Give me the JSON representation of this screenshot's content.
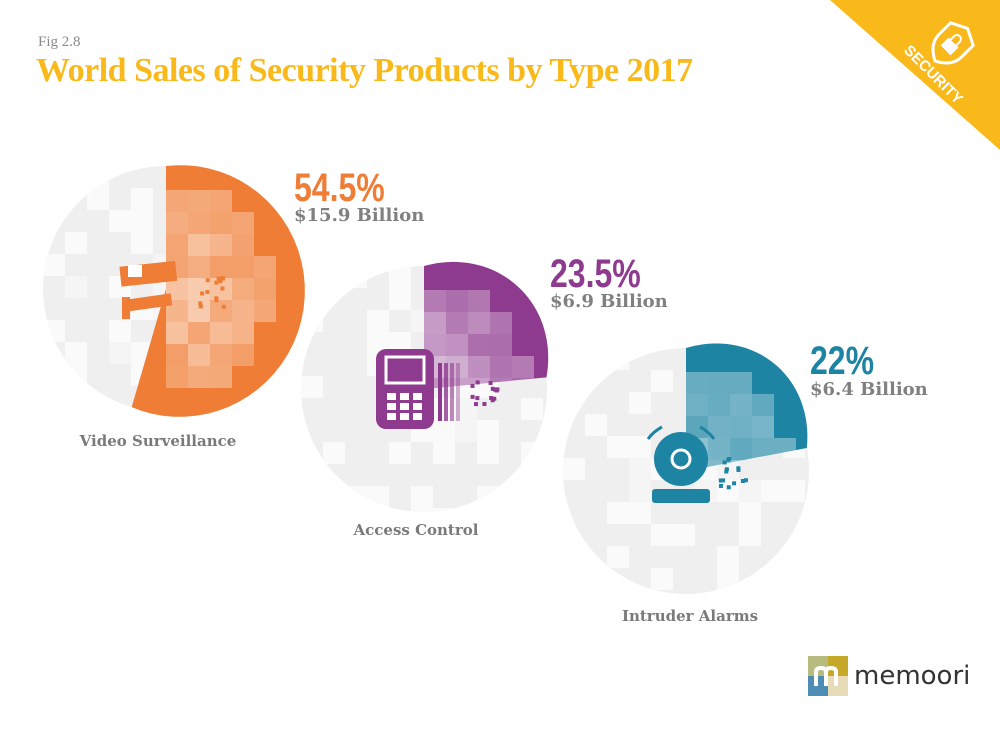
{
  "header": {
    "fig_label": "Fig 2.8",
    "badge_label": "SECURITY",
    "badge_icon": "shield-lock-icon"
  },
  "chart_data": {
    "type": "pie",
    "title": "World Sales of Security Products by Type 2017",
    "series": [
      {
        "category": "Video Surveillance",
        "percent": 54.5,
        "percent_label": "54.5%",
        "value_label": "$15.9 Billion",
        "value_billion_usd": 15.9,
        "color": "#ef7d35",
        "icon": "cctv-camera-icon"
      },
      {
        "category": "Access Control",
        "percent": 23.5,
        "percent_label": "23.5%",
        "value_label": "$6.9 Billion",
        "value_billion_usd": 6.9,
        "color": "#8e3a8e",
        "icon": "keypad-icon"
      },
      {
        "category": "Intruder Alarms",
        "percent": 22,
        "percent_label": "22%",
        "value_label": "$6.4 Billion",
        "value_billion_usd": 6.4,
        "color": "#1e84a3",
        "icon": "alarm-bell-icon"
      }
    ]
  },
  "brand": {
    "logo_text": "memoori",
    "accent": "#f9b91a"
  }
}
